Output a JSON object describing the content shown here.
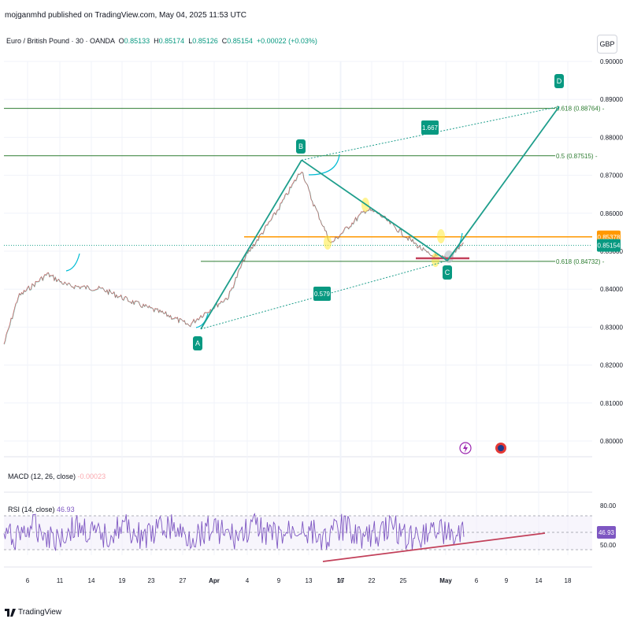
{
  "header": {
    "published": "mojganmhd published on TradingView.com, May 04, 2025 11:53 UTC"
  },
  "symbol": {
    "name": "Euro / British Pound · 30 · OANDA",
    "o_label": "O",
    "o": "0.85133",
    "h_label": "H",
    "h": "0.85174",
    "l_label": "L",
    "l": "0.85126",
    "c_label": "C",
    "c": "0.85154",
    "change": "+0.00022 (+0.03%)"
  },
  "currency_button": "GBP",
  "macd": {
    "label": "MACD (12, 26, close)",
    "value": "-0.00023"
  },
  "rsi": {
    "label": "RSI (14, close)",
    "value": "46.93",
    "badge": "46.93",
    "level_top": "80.00",
    "level_mid": "50.00"
  },
  "footer": {
    "brand": "TradingView"
  },
  "colors": {
    "teal": "#089981",
    "wave": "#1e9e8c",
    "fib": "#2e7d32",
    "orange": "#ff9800",
    "price_badge": "#089981",
    "rsi": "#7e57c2",
    "trend": "#c2405a",
    "highlight": "#ffeb3b"
  },
  "chart_data": {
    "type": "line",
    "title": "Euro / British Pound · 30 · OANDA",
    "ylim": [
      0.8,
      0.9
    ],
    "y_ticks": [
      "0.90000",
      "0.89000",
      "0.88000",
      "0.87000",
      "0.86000",
      "0.85000",
      "0.84000",
      "0.83000",
      "0.82000",
      "0.81000",
      "0.80000"
    ],
    "x_ticks": [
      "6",
      "11",
      "14",
      "19",
      "23",
      "27",
      "Apr",
      "4",
      "9",
      "13",
      "16",
      "17",
      "22",
      "25",
      "May",
      "6",
      "9",
      "14",
      "18"
    ],
    "grid": true,
    "price_path": {
      "dates": [
        "Mar 3",
        "Mar 5",
        "Mar 10",
        "Mar 12",
        "Mar 17",
        "Mar 21",
        "Mar 26",
        "Mar 28",
        "Apr 1",
        "Apr 3",
        "Apr 7",
        "Apr 10",
        "Apr 11",
        "Apr 14",
        "Apr 17",
        "Apr 18",
        "Apr 21",
        "Apr 25",
        "Apr 28",
        "Apr 30",
        "May 2"
      ],
      "values": [
        0.8255,
        0.838,
        0.844,
        0.841,
        0.84,
        0.8365,
        0.833,
        0.8305,
        0.833,
        0.838,
        0.848,
        0.86,
        0.8715,
        0.864,
        0.852,
        0.861,
        0.86,
        0.854,
        0.849,
        0.848,
        0.8525
      ]
    },
    "waves": [
      {
        "label": "A",
        "date": "Apr 1",
        "value": 0.8295
      },
      {
        "label": "B",
        "date": "Apr 11",
        "value": 0.874
      },
      {
        "label": "C",
        "date": "Apr 30",
        "value": 0.8475
      },
      {
        "label": "D",
        "date": "May 12",
        "value": 0.891
      }
    ],
    "ratios": [
      {
        "label": "1.667"
      },
      {
        "label": "0.579"
      }
    ],
    "fib_levels": [
      {
        "label": "0.618 (0.88764)",
        "value": 0.88764
      },
      {
        "label": "0.5 (0.87515)",
        "value": 0.87515
      },
      {
        "label": "0.618 (0.84732)",
        "value": 0.84732
      }
    ],
    "price_badges": [
      {
        "label": "0.85378",
        "value": 0.85378,
        "color": "#ff9800"
      },
      {
        "label": "0.85154",
        "value": 0.85154,
        "color": "#089981"
      }
    ],
    "series": [
      {
        "values": [
          0.8255,
          0.838,
          0.844,
          0.841,
          0.84,
          0.8365,
          0.833,
          0.8305,
          0.833,
          0.838,
          0.848,
          0.86,
          0.8715,
          0.864,
          0.852,
          0.861,
          0.86,
          0.854,
          0.849,
          0.848,
          0.8525
        ]
      }
    ]
  }
}
